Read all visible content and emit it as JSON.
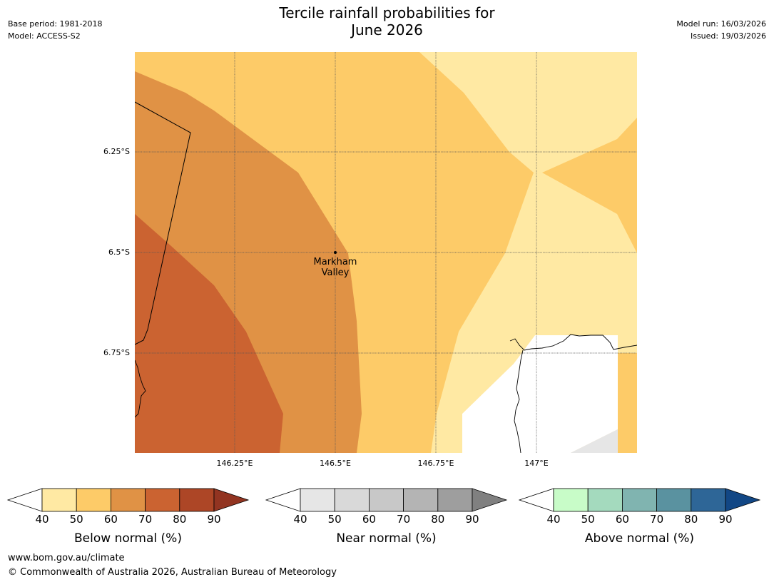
{
  "header": {
    "title_line1": "Tercile rainfall probabilities for",
    "title_line2": "June 2026",
    "base_period": "Base period: 1981-2018",
    "model": "Model: ACCESS-S2",
    "model_run": "Model run: 16/03/2026",
    "issued": "Issued: 19/03/2026"
  },
  "map": {
    "place_label_line1": "Markham",
    "place_label_line2": "Valley",
    "lat_ticks": [
      "6.25°S",
      "6.5°S",
      "6.75°S"
    ],
    "lon_ticks": [
      "146.25°E",
      "146.5°E",
      "146.75°E",
      "147°E"
    ],
    "fill_colors": {
      "below_40_50": "#ffe9a3",
      "below_50_60": "#fdcb68",
      "below_60_70": "#e09245",
      "below_70_80": "#cb6331",
      "near_40_50": "#e6e6e6"
    }
  },
  "colorbars": [
    {
      "label": "Below normal (%)",
      "ticks": [
        "40",
        "50",
        "60",
        "70",
        "80",
        "90"
      ],
      "colors": [
        "#ffe9a3",
        "#fdcb68",
        "#e09245",
        "#cb6331",
        "#ad4626",
        "#923421"
      ]
    },
    {
      "label": "Near normal (%)",
      "ticks": [
        "40",
        "50",
        "60",
        "70",
        "80",
        "90"
      ],
      "colors": [
        "#e6e6e6",
        "#d9d9d9",
        "#c8c8c8",
        "#b4b4b4",
        "#9e9e9e",
        "#808080"
      ]
    },
    {
      "label": "Above normal (%)",
      "ticks": [
        "40",
        "50",
        "60",
        "70",
        "80",
        "90"
      ],
      "colors": [
        "#c8fcc8",
        "#a4dabe",
        "#80b4b0",
        "#5a92a0",
        "#2e6697",
        "#124785"
      ]
    }
  ],
  "footer": {
    "url": "www.bom.gov.au/climate",
    "copyright": "© Commonwealth of Australia 2026, Australian Bureau of Meteorology"
  }
}
